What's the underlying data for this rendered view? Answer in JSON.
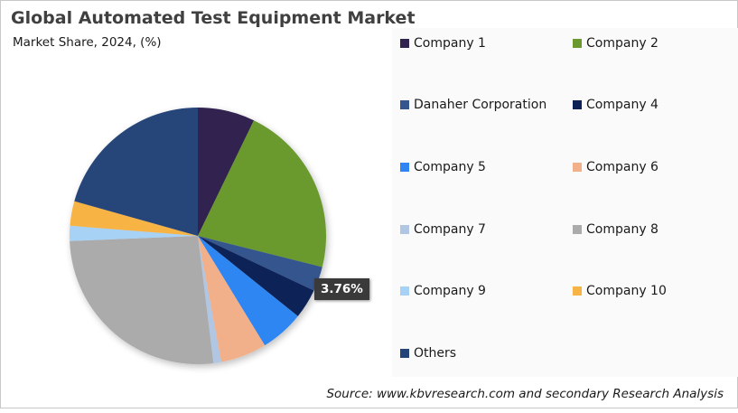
{
  "header": {
    "title": "Global Automated Test Equipment Market",
    "subtitle": "Market Share, 2024, (%)"
  },
  "legend": {
    "items": [
      {
        "label": "Company 1",
        "color": "#31234f"
      },
      {
        "label": "Company 2",
        "color": "#6b992f"
      },
      {
        "label": "Danaher Corporation",
        "color": "#34558e"
      },
      {
        "label": "Company 4",
        "color": "#0c2256"
      },
      {
        "label": "Company 5",
        "color": "#2f86f2"
      },
      {
        "label": "Company 6",
        "color": "#f2b08a"
      },
      {
        "label": "Company 7",
        "color": "#b1c6e2"
      },
      {
        "label": "Company 8",
        "color": "#ababab"
      },
      {
        "label": "Company 9",
        "color": "#a7d2f6"
      },
      {
        "label": "Company 10",
        "color": "#f8b345"
      },
      {
        "label": "Others",
        "color": "#254579"
      }
    ]
  },
  "data_label": {
    "text": "3.76%",
    "target": "Company 4"
  },
  "source": "Source: www.kbvresearch.com and secondary Research Analysis",
  "chart_data": {
    "type": "pie",
    "title": "Global Automated Test Equipment Market",
    "subtitle": "Market Share, 2024, (%)",
    "categories": [
      "Company 1",
      "Company 2",
      "Danaher Corporation",
      "Company 4",
      "Company 5",
      "Company 6",
      "Company 7",
      "Company 8",
      "Company 9",
      "Company 10",
      "Others"
    ],
    "values": [
      7.2,
      21.7,
      3.1,
      3.76,
      5.5,
      5.8,
      1.0,
      26.3,
      1.9,
      3.1,
      20.64
    ],
    "colors": [
      "#31234f",
      "#6b992f",
      "#34558e",
      "#0c2256",
      "#2f86f2",
      "#f2b08a",
      "#b1c6e2",
      "#ababab",
      "#a7d2f6",
      "#f8b345",
      "#254579"
    ],
    "annotations": [
      {
        "category": "Company 4",
        "text": "3.76%"
      }
    ],
    "start_angle_deg": 0,
    "direction": "clockwise",
    "legend_position": "right"
  }
}
